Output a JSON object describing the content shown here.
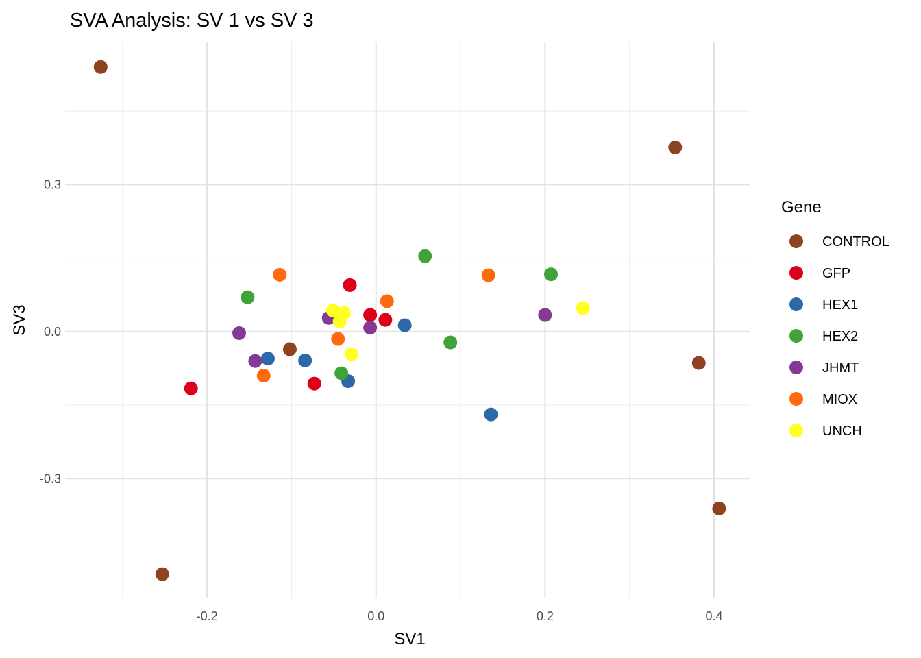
{
  "chart_data": {
    "type": "scatter",
    "title": "SVA Analysis: SV 1  vs SV 3",
    "xlabel": "SV1",
    "ylabel": "SV3",
    "xlim": [
      -0.368,
      0.443
    ],
    "ylim": [
      -0.543,
      0.59
    ],
    "x_ticks": [
      -0.2,
      0.0,
      0.2,
      0.4
    ],
    "x_tick_labels": [
      "-0.2",
      "0.0",
      "0.2",
      "0.4"
    ],
    "y_ticks": [
      -0.3,
      0.0,
      0.3
    ],
    "y_tick_labels": [
      "-0.3",
      "0.0",
      "0.3"
    ],
    "grid": true,
    "legend": {
      "title": "Gene",
      "placement": "right"
    },
    "series": [
      {
        "name": "CONTROL",
        "color": "#8E4220",
        "points": [
          [
            -0.326,
            0.54
          ],
          [
            0.354,
            0.376
          ],
          [
            0.382,
            -0.064
          ],
          [
            0.406,
            -0.361
          ],
          [
            -0.253,
            -0.495
          ],
          [
            -0.102,
            -0.036
          ]
        ]
      },
      {
        "name": "GFP",
        "color": "#DE0018",
        "points": [
          [
            -0.219,
            -0.116
          ],
          [
            -0.073,
            -0.106
          ],
          [
            -0.031,
            0.095
          ],
          [
            -0.007,
            0.034
          ],
          [
            0.011,
            0.024
          ]
        ]
      },
      {
        "name": "HEX1",
        "color": "#2D69A8",
        "points": [
          [
            -0.128,
            -0.055
          ],
          [
            -0.084,
            -0.059
          ],
          [
            -0.033,
            -0.101
          ],
          [
            0.034,
            0.013
          ],
          [
            0.136,
            -0.169
          ]
        ]
      },
      {
        "name": "HEX2",
        "color": "#40A33A",
        "points": [
          [
            -0.152,
            0.07
          ],
          [
            0.058,
            0.154
          ],
          [
            0.207,
            0.117
          ],
          [
            0.088,
            -0.022
          ],
          [
            -0.041,
            -0.085
          ]
        ]
      },
      {
        "name": "JHMT",
        "color": "#843A94",
        "points": [
          [
            -0.162,
            -0.003
          ],
          [
            -0.143,
            -0.06
          ],
          [
            -0.056,
            0.028
          ],
          [
            -0.007,
            0.008
          ],
          [
            0.2,
            0.034
          ]
        ]
      },
      {
        "name": "MIOX",
        "color": "#FF6A0F",
        "points": [
          [
            -0.114,
            0.116
          ],
          [
            -0.133,
            -0.09
          ],
          [
            -0.045,
            -0.015
          ],
          [
            0.013,
            0.062
          ],
          [
            0.133,
            0.115
          ]
        ]
      },
      {
        "name": "UNCH",
        "color": "#FFFF22",
        "points": [
          [
            -0.051,
            0.043
          ],
          [
            -0.038,
            0.038
          ],
          [
            -0.043,
            0.021
          ],
          [
            -0.029,
            -0.046
          ],
          [
            0.245,
            0.048
          ]
        ]
      }
    ]
  }
}
